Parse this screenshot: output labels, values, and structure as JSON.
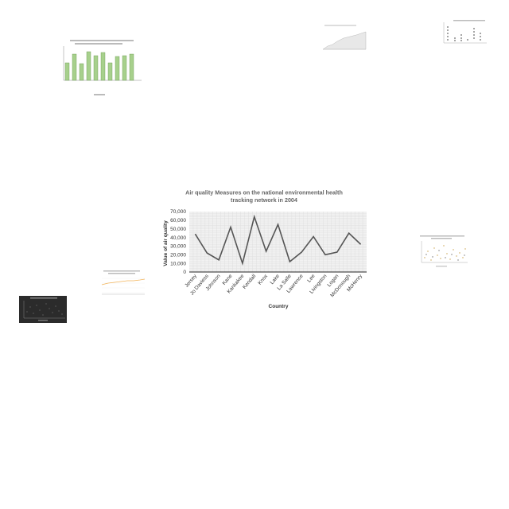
{
  "chart_data": {
    "type": "line",
    "title": "Air quality Measures on the national environmental health tracking network in 2004",
    "title_lines": [
      "Air quality Measures on the national environmental health",
      "tracking network in 2004"
    ],
    "xlabel": "Country",
    "ylabel": "Value of air quality",
    "categories": [
      "Jersey",
      "Jo Daviess",
      "Johnson",
      "Kane",
      "Kankakee",
      "Kendall",
      "Knox",
      "Lake",
      "La Salle",
      "Lawrence",
      "Lee",
      "Livingston",
      "Logan",
      "McDonough",
      "McHenry"
    ],
    "values": [
      44000,
      22000,
      14000,
      52000,
      10000,
      64000,
      24000,
      55000,
      12000,
      23000,
      41000,
      20000,
      23000,
      45000,
      32000
    ],
    "yticks": [
      "0",
      "10,000",
      "20,000",
      "30,000",
      "40,000",
      "50,000",
      "60,000",
      "70,000"
    ],
    "ylim": [
      0,
      70000
    ],
    "grid": true,
    "line_color": "#555555"
  }
}
